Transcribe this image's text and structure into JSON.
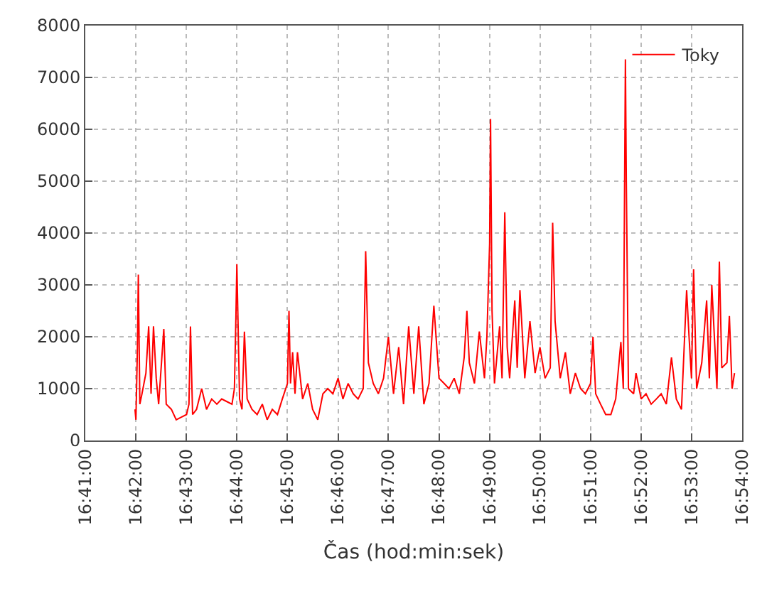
{
  "chart_data": {
    "type": "line",
    "xlabel": "Čas (hod:min:sek)",
    "x": [
      16.6997,
      16.7,
      16.7005,
      16.7008,
      16.7013,
      16.702,
      16.7033,
      16.7042,
      16.705,
      16.7058,
      16.7067,
      16.7075,
      16.7092,
      16.71,
      16.7117,
      16.7133,
      16.715,
      16.7167,
      16.7175,
      16.718,
      16.7187,
      16.72,
      16.7217,
      16.7233,
      16.725,
      16.7267,
      16.7283,
      16.73,
      16.7317,
      16.7325,
      16.733,
      16.7333,
      16.7342,
      16.735,
      16.7358,
      16.7367,
      16.7383,
      16.74,
      16.7417,
      16.7433,
      16.745,
      16.7467,
      16.7483,
      16.75,
      16.7505,
      16.751,
      16.7517,
      16.7525,
      16.7533,
      16.755,
      16.7567,
      16.7583,
      16.76,
      16.7617,
      16.7633,
      16.765,
      16.7667,
      16.7683,
      16.77,
      16.7717,
      16.7733,
      16.775,
      16.7758,
      16.7767,
      16.7783,
      16.78,
      16.7817,
      16.7833,
      16.785,
      16.7867,
      16.7883,
      16.79,
      16.7917,
      16.7933,
      16.795,
      16.7967,
      16.7983,
      16.8,
      16.8017,
      16.8033,
      16.805,
      16.8067,
      16.8083,
      16.8092,
      16.81,
      16.8117,
      16.8133,
      16.815,
      16.8158,
      16.8167,
      16.817,
      16.8175,
      16.8183,
      16.82,
      16.8208,
      16.8217,
      16.8225,
      16.8233,
      16.825,
      16.8258,
      16.8267,
      16.8283,
      16.83,
      16.8317,
      16.8333,
      16.835,
      16.8367,
      16.8375,
      16.8383,
      16.84,
      16.8417,
      16.8433,
      16.845,
      16.8467,
      16.8483,
      16.85,
      16.8508,
      16.8517,
      16.8533,
      16.855,
      16.8567,
      16.8583,
      16.86,
      16.8608,
      16.8615,
      16.8618,
      16.8625,
      16.8642,
      16.865,
      16.8667,
      16.8683,
      16.87,
      16.8717,
      16.8733,
      16.875,
      16.8767,
      16.8783,
      16.88,
      16.8817,
      16.8825,
      16.8833,
      16.884,
      16.885,
      16.8867,
      16.8883,
      16.8892,
      16.89,
      16.8917,
      16.8925,
      16.8933,
      16.895,
      16.8958,
      16.8967,
      16.8975
    ],
    "series": [
      {
        "name": "Toky",
        "color": "#ff0000",
        "values": [
          600,
          400,
          1800,
          3200,
          700,
          900,
          1300,
          2200,
          900,
          2200,
          1200,
          700,
          2150,
          700,
          600,
          400,
          450,
          500,
          700,
          2200,
          500,
          600,
          1000,
          600,
          800,
          700,
          800,
          750,
          700,
          1000,
          2400,
          3400,
          800,
          600,
          2100,
          800,
          600,
          500,
          700,
          400,
          600,
          500,
          800,
          1100,
          2500,
          1100,
          1700,
          900,
          1700,
          800,
          1100,
          600,
          400,
          900,
          1000,
          900,
          1200,
          800,
          1100,
          900,
          800,
          1000,
          3650,
          1500,
          1100,
          900,
          1200,
          2000,
          900,
          1800,
          700,
          2200,
          900,
          2200,
          700,
          1100,
          2600,
          1200,
          1100,
          1000,
          1200,
          900,
          1600,
          2500,
          1500,
          1100,
          2100,
          1200,
          2000,
          3800,
          6200,
          2500,
          1100,
          2200,
          1200,
          4400,
          1800,
          1200,
          2700,
          1400,
          2900,
          1200,
          2300,
          1300,
          1800,
          1200,
          1400,
          4200,
          2300,
          1200,
          1700,
          900,
          1300,
          1000,
          900,
          1100,
          2000,
          900,
          700,
          500,
          500,
          800,
          1900,
          1000,
          7350,
          5000,
          1000,
          900,
          1300,
          800,
          900,
          700,
          800,
          900,
          700,
          1600,
          800,
          600,
          2900,
          2000,
          1200,
          3300,
          1000,
          1500,
          2700,
          1200,
          3000,
          1000,
          3450,
          1400,
          1500,
          2400,
          1000,
          1300
        ]
      }
    ],
    "xlim": [
      16.6833,
      16.9
    ],
    "xticks": [
      {
        "value": 16.6833,
        "label": "16:41:00"
      },
      {
        "value": 16.7,
        "label": "16:42:00"
      },
      {
        "value": 16.7167,
        "label": "16:43:00"
      },
      {
        "value": 16.7333,
        "label": "16:44:00"
      },
      {
        "value": 16.75,
        "label": "16:45:00"
      },
      {
        "value": 16.7667,
        "label": "16:46:00"
      },
      {
        "value": 16.7833,
        "label": "16:47:00"
      },
      {
        "value": 16.8,
        "label": "16:48:00"
      },
      {
        "value": 16.8167,
        "label": "16:49:00"
      },
      {
        "value": 16.8333,
        "label": "16:50:00"
      },
      {
        "value": 16.85,
        "label": "16:51:00"
      },
      {
        "value": 16.8667,
        "label": "16:52:00"
      },
      {
        "value": 16.8833,
        "label": "16:53:00"
      },
      {
        "value": 16.9,
        "label": "16:54:00"
      }
    ],
    "ylim": [
      0,
      8000
    ],
    "yticks": [
      0,
      1000,
      2000,
      3000,
      4000,
      5000,
      6000,
      7000,
      8000
    ],
    "grid": true,
    "legend": "top right",
    "marker": "none",
    "line_style": "solid"
  }
}
